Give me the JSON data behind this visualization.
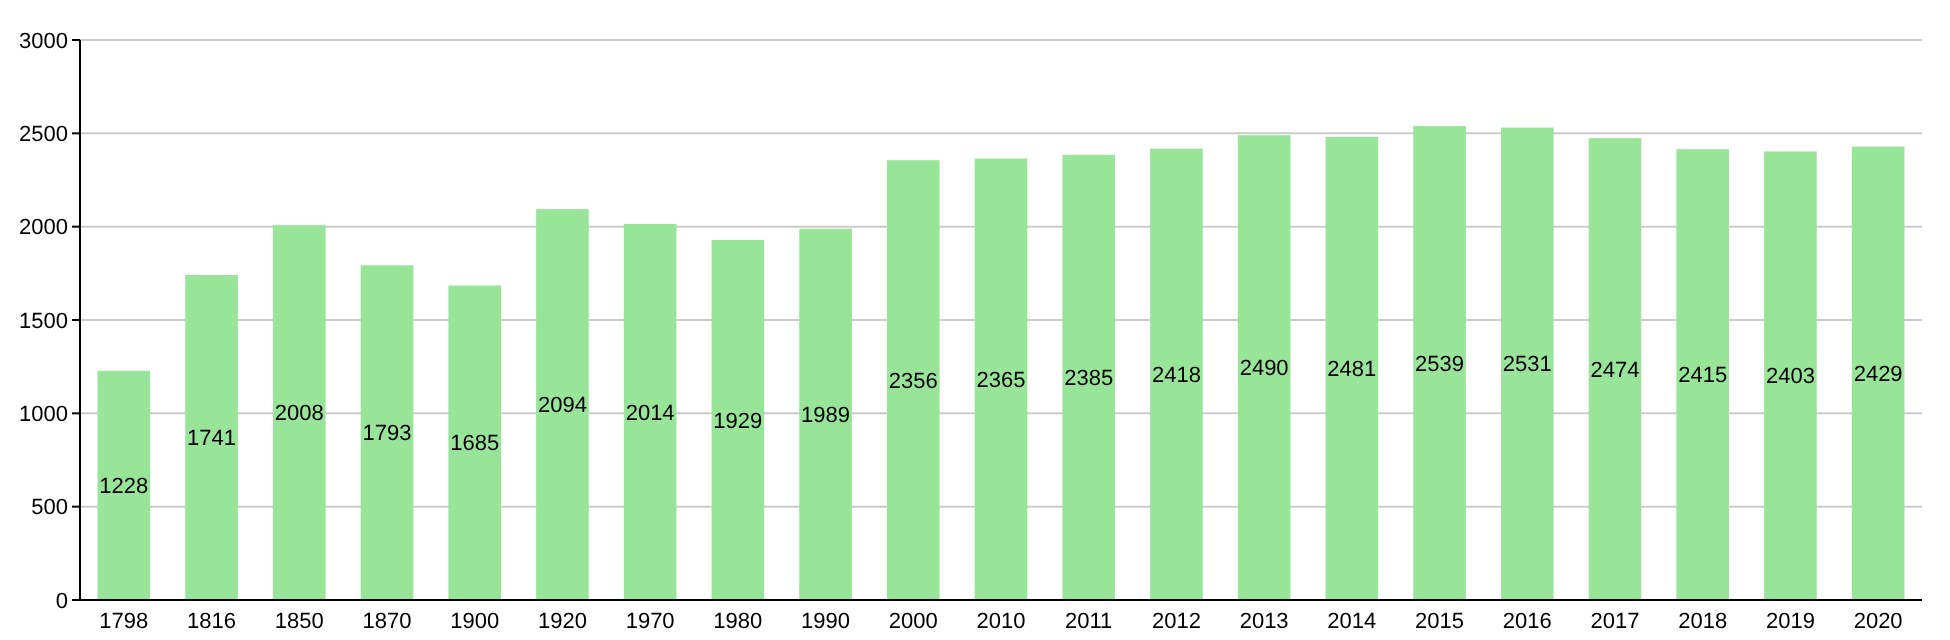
{
  "chart_data": {
    "type": "bar",
    "categories": [
      "1798",
      "1816",
      "1850",
      "1870",
      "1900",
      "1920",
      "1970",
      "1980",
      "1990",
      "2000",
      "2010",
      "2011",
      "2012",
      "2013",
      "2014",
      "2015",
      "2016",
      "2017",
      "2018",
      "2019",
      "2020"
    ],
    "values": [
      1228,
      1741,
      2008,
      1793,
      1685,
      2094,
      2014,
      1929,
      1989,
      2356,
      2365,
      2385,
      2418,
      2490,
      2481,
      2539,
      2531,
      2474,
      2415,
      2403,
      2429
    ],
    "color": "#98e498",
    "ylim": [
      0,
      3000
    ],
    "yticks": [
      0,
      500,
      1000,
      1500,
      2000,
      2500,
      3000
    ],
    "grid": "y",
    "data_labels": true
  }
}
